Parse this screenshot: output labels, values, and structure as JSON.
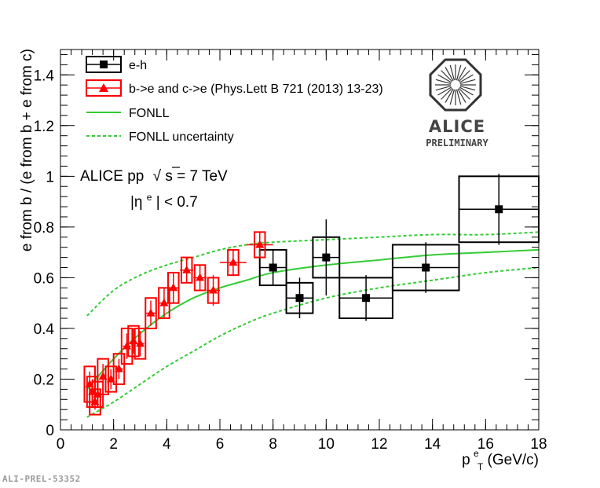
{
  "chart_data": {
    "type": "scatter",
    "xlabel": "p",
    "xlabel_sup": "e",
    "xlabel_sub": "T",
    "xlabel_unit": " (GeV/c)",
    "ylabel": "e from b / (e from b + e from c)",
    "xlim": [
      0,
      18
    ],
    "ylim": [
      0,
      1.5
    ],
    "x_ticks": [
      0,
      2,
      4,
      6,
      8,
      10,
      12,
      14,
      16,
      18
    ],
    "y_ticks": [
      0,
      0.2,
      0.4,
      0.6,
      0.8,
      1,
      1.2,
      1.4
    ],
    "y_tick_labels": [
      "0",
      "0.2",
      "0.4",
      "0.6",
      "0.8",
      "1",
      "1.2",
      "1.4"
    ],
    "grid": false,
    "legend_position": "top-left",
    "annotation": {
      "line1_prefix": "ALICE pp",
      "line1_sqrt": "√",
      "line1_s": "s",
      "line1_suffix": " = 7 TeV",
      "line2_eta": "|η",
      "line2_sup": "e",
      "line2_suffix": "| < 0.7"
    },
    "logo": {
      "text": "ALICE",
      "subtext": "PRELIMINARY"
    },
    "series": [
      {
        "name": "e-h",
        "color": "#000000",
        "marker": "square",
        "points": [
          {
            "x": 8.0,
            "xerr": 0.5,
            "y": 0.64,
            "stat": 0.07,
            "syst": 0.07
          },
          {
            "x": 9.0,
            "xerr": 0.5,
            "y": 0.52,
            "stat": 0.08,
            "syst": 0.06
          },
          {
            "x": 10.0,
            "xerr": 0.5,
            "y": 0.68,
            "stat": 0.15,
            "syst": 0.08
          },
          {
            "x": 11.5,
            "xerr": 1.0,
            "y": 0.52,
            "stat": 0.09,
            "syst": 0.08
          },
          {
            "x": 13.75,
            "xerr": 1.25,
            "y": 0.64,
            "stat": 0.1,
            "syst": 0.09
          },
          {
            "x": 16.5,
            "xerr": 1.5,
            "y": 0.87,
            "stat": 0.14,
            "syst": 0.13
          }
        ]
      },
      {
        "name": "b->e and c->e (Phys.Lett B 721 (2013) 13-23)",
        "color": "#ff0000",
        "marker": "triangle",
        "points": [
          {
            "x": 1.1,
            "xerr": 0.1,
            "y": 0.18,
            "stat": 0.05,
            "syst": 0.07
          },
          {
            "x": 1.2,
            "xerr": 0.05,
            "y": 0.15,
            "stat": 0.05,
            "syst": 0.06
          },
          {
            "x": 1.3,
            "xerr": 0.05,
            "y": 0.11,
            "stat": 0.03,
            "syst": 0.05
          },
          {
            "x": 1.4,
            "xerr": 0.05,
            "y": 0.14,
            "stat": 0.04,
            "syst": 0.05
          },
          {
            "x": 1.6,
            "xerr": 0.1,
            "y": 0.21,
            "stat": 0.05,
            "syst": 0.07
          },
          {
            "x": 1.9,
            "xerr": 0.1,
            "y": 0.2,
            "stat": 0.04,
            "syst": 0.05
          },
          {
            "x": 2.2,
            "xerr": 0.15,
            "y": 0.24,
            "stat": 0.04,
            "syst": 0.06
          },
          {
            "x": 2.5,
            "xerr": 0.15,
            "y": 0.33,
            "stat": 0.05,
            "syst": 0.07
          },
          {
            "x": 2.75,
            "xerr": 0.1,
            "y": 0.35,
            "stat": 0.05,
            "syst": 0.06
          },
          {
            "x": 3.0,
            "xerr": 0.15,
            "y": 0.34,
            "stat": 0.05,
            "syst": 0.06
          },
          {
            "x": 3.4,
            "xerr": 0.2,
            "y": 0.46,
            "stat": 0.05,
            "syst": 0.06
          },
          {
            "x": 3.9,
            "xerr": 0.2,
            "y": 0.5,
            "stat": 0.06,
            "syst": 0.06
          },
          {
            "x": 4.25,
            "xerr": 0.2,
            "y": 0.56,
            "stat": 0.06,
            "syst": 0.06
          },
          {
            "x": 4.75,
            "xerr": 0.25,
            "y": 0.63,
            "stat": 0.05,
            "syst": 0.05
          },
          {
            "x": 5.25,
            "xerr": 0.25,
            "y": 0.6,
            "stat": 0.05,
            "syst": 0.05
          },
          {
            "x": 5.75,
            "xerr": 0.25,
            "y": 0.55,
            "stat": 0.06,
            "syst": 0.05
          },
          {
            "x": 6.5,
            "xerr": 0.5,
            "y": 0.66,
            "stat": 0.05,
            "syst": 0.05
          },
          {
            "x": 7.5,
            "xerr": 0.5,
            "y": 0.73,
            "stat": 0.05,
            "syst": 0.05
          }
        ]
      },
      {
        "name": "FONLL",
        "color": "#33cc33",
        "style": "solid",
        "x": [
          1.0,
          2.0,
          3.0,
          4.0,
          5.0,
          6.0,
          7.0,
          8.0,
          10.0,
          12.0,
          14.0,
          16.0,
          18.0
        ],
        "y": [
          0.16,
          0.28,
          0.38,
          0.46,
          0.52,
          0.56,
          0.59,
          0.62,
          0.65,
          0.67,
          0.69,
          0.7,
          0.71
        ]
      },
      {
        "name": "FONLL uncertainty",
        "color": "#33cc33",
        "style": "dashed",
        "band_upper": {
          "x": [
            1.0,
            2.0,
            3.0,
            4.0,
            5.0,
            6.0,
            7.0,
            8.0,
            10.0,
            12.0,
            14.0,
            16.0,
            18.0
          ],
          "y": [
            0.45,
            0.55,
            0.61,
            0.65,
            0.68,
            0.71,
            0.73,
            0.74,
            0.75,
            0.76,
            0.77,
            0.77,
            0.78
          ]
        },
        "band_lower": {
          "x": [
            1.0,
            2.0,
            3.0,
            4.0,
            5.0,
            6.0,
            7.0,
            8.0,
            10.0,
            12.0,
            14.0,
            16.0,
            18.0
          ],
          "y": [
            0.05,
            0.11,
            0.18,
            0.25,
            0.31,
            0.37,
            0.42,
            0.46,
            0.52,
            0.56,
            0.59,
            0.62,
            0.64
          ]
        }
      }
    ]
  },
  "footer": {
    "id": "ALI-PREL-53352"
  }
}
